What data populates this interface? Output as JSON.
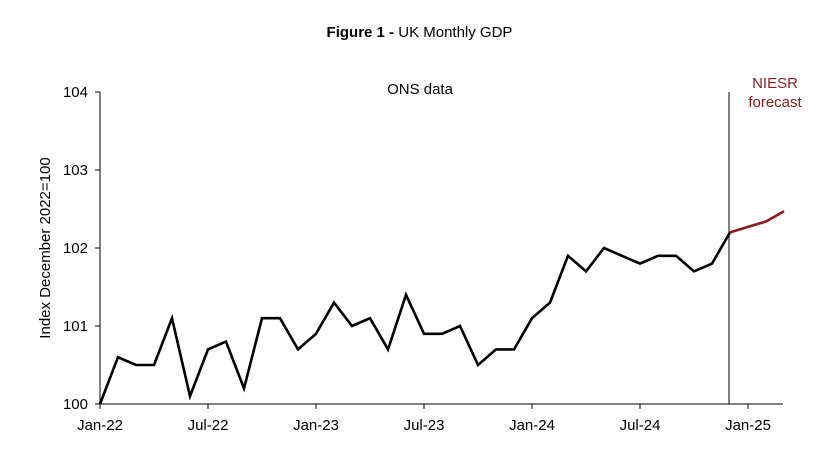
{
  "figure": {
    "label": "Figure 1 -",
    "title": "UK Monthly GDP"
  },
  "chart_data": {
    "type": "line",
    "title": "UK Monthly GDP",
    "ylabel": "Index December 2022=100",
    "xlabel": "",
    "ylim": [
      100,
      104
    ],
    "yticks": [
      100,
      101,
      102,
      103,
      104
    ],
    "xticks": [
      "Jan-22",
      "Jul-22",
      "Jan-23",
      "Jul-23",
      "Jan-24",
      "Jul-24",
      "Jan-25"
    ],
    "grid": false,
    "annotations": {
      "ons": "ONS data",
      "niesr_line1": "NIESR",
      "niesr_line2": "forecast"
    },
    "colors": {
      "ons": "#000000",
      "forecast": "#8b1a1a",
      "divider": "#000000"
    },
    "series": [
      {
        "x": [
          "Jan-22",
          "Feb-22",
          "Mar-22",
          "Apr-22",
          "May-22",
          "Jun-22",
          "Jul-22",
          "Aug-22",
          "Sep-22",
          "Oct-22",
          "Nov-22",
          "Dec-22",
          "Jan-23",
          "Feb-23",
          "Mar-23",
          "Apr-23",
          "May-23",
          "Jun-23",
          "Jul-23",
          "Aug-23",
          "Sep-23",
          "Oct-23",
          "Nov-23",
          "Dec-23",
          "Jan-24",
          "Feb-24",
          "Mar-24",
          "Apr-24",
          "May-24",
          "Jun-24",
          "Jul-24",
          "Aug-24",
          "Sep-24",
          "Oct-24",
          "Nov-24",
          "Dec-24"
        ],
        "values": [
          100.0,
          100.6,
          100.5,
          100.5,
          101.1,
          100.1,
          100.7,
          100.8,
          100.2,
          101.1,
          101.1,
          100.7,
          100.9,
          101.3,
          101.0,
          101.1,
          100.7,
          101.4,
          100.9,
          100.9,
          101.0,
          100.5,
          100.7,
          100.7,
          101.1,
          101.3,
          101.9,
          101.7,
          102.0,
          101.9,
          101.8,
          101.9,
          101.9,
          101.7,
          101.8,
          102.2
        ]
      },
      {
        "x": [
          "Dec-24",
          "Jan-25",
          "Feb-25",
          "Mar-25"
        ],
        "values": [
          102.2,
          102.27,
          102.34,
          102.47
        ]
      }
    ]
  }
}
